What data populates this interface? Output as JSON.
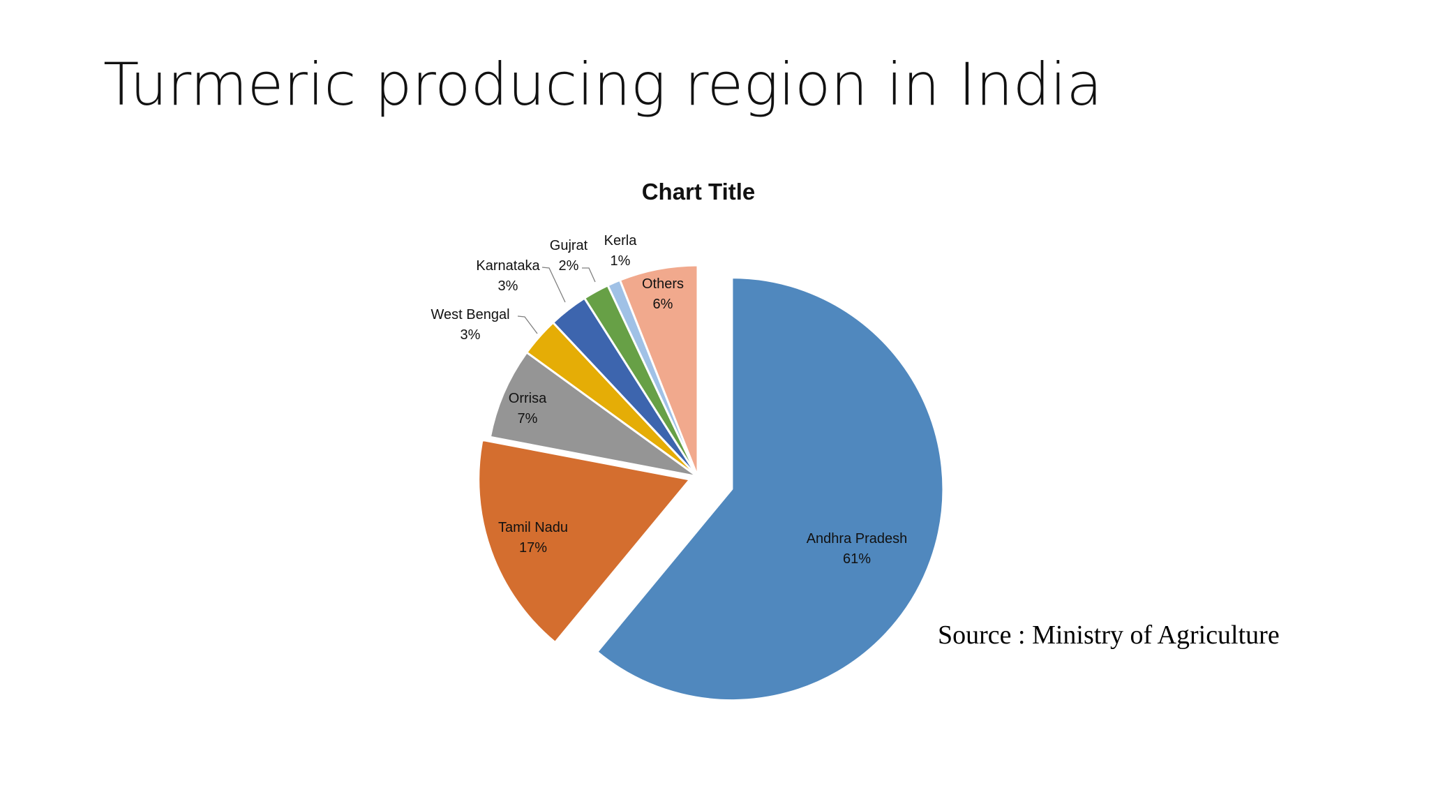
{
  "slide": {
    "title": "Turmeric producing region in India",
    "source": "Source : Ministry of Agriculture"
  },
  "chart_data": {
    "type": "pie",
    "title": "Chart Title",
    "categories": [
      "Andhra Pradesh",
      "Tamil Nadu",
      "Orrisa",
      "West Bengal",
      "Karnataka",
      "Gujrat",
      "Kerla",
      "Others"
    ],
    "values": [
      61,
      17,
      7,
      3,
      3,
      2,
      1,
      6
    ],
    "labels": [
      "61%",
      "17%",
      "7%",
      "3%",
      "3%",
      "2%",
      "1%",
      "6%"
    ],
    "colors": [
      "#5088be",
      "#d46e2f",
      "#959595",
      "#e5ad06",
      "#3d65ae",
      "#67a046",
      "#a0c1e6",
      "#f1a98d"
    ],
    "exploded": [
      "Andhra Pradesh",
      "Tamil Nadu"
    ]
  }
}
